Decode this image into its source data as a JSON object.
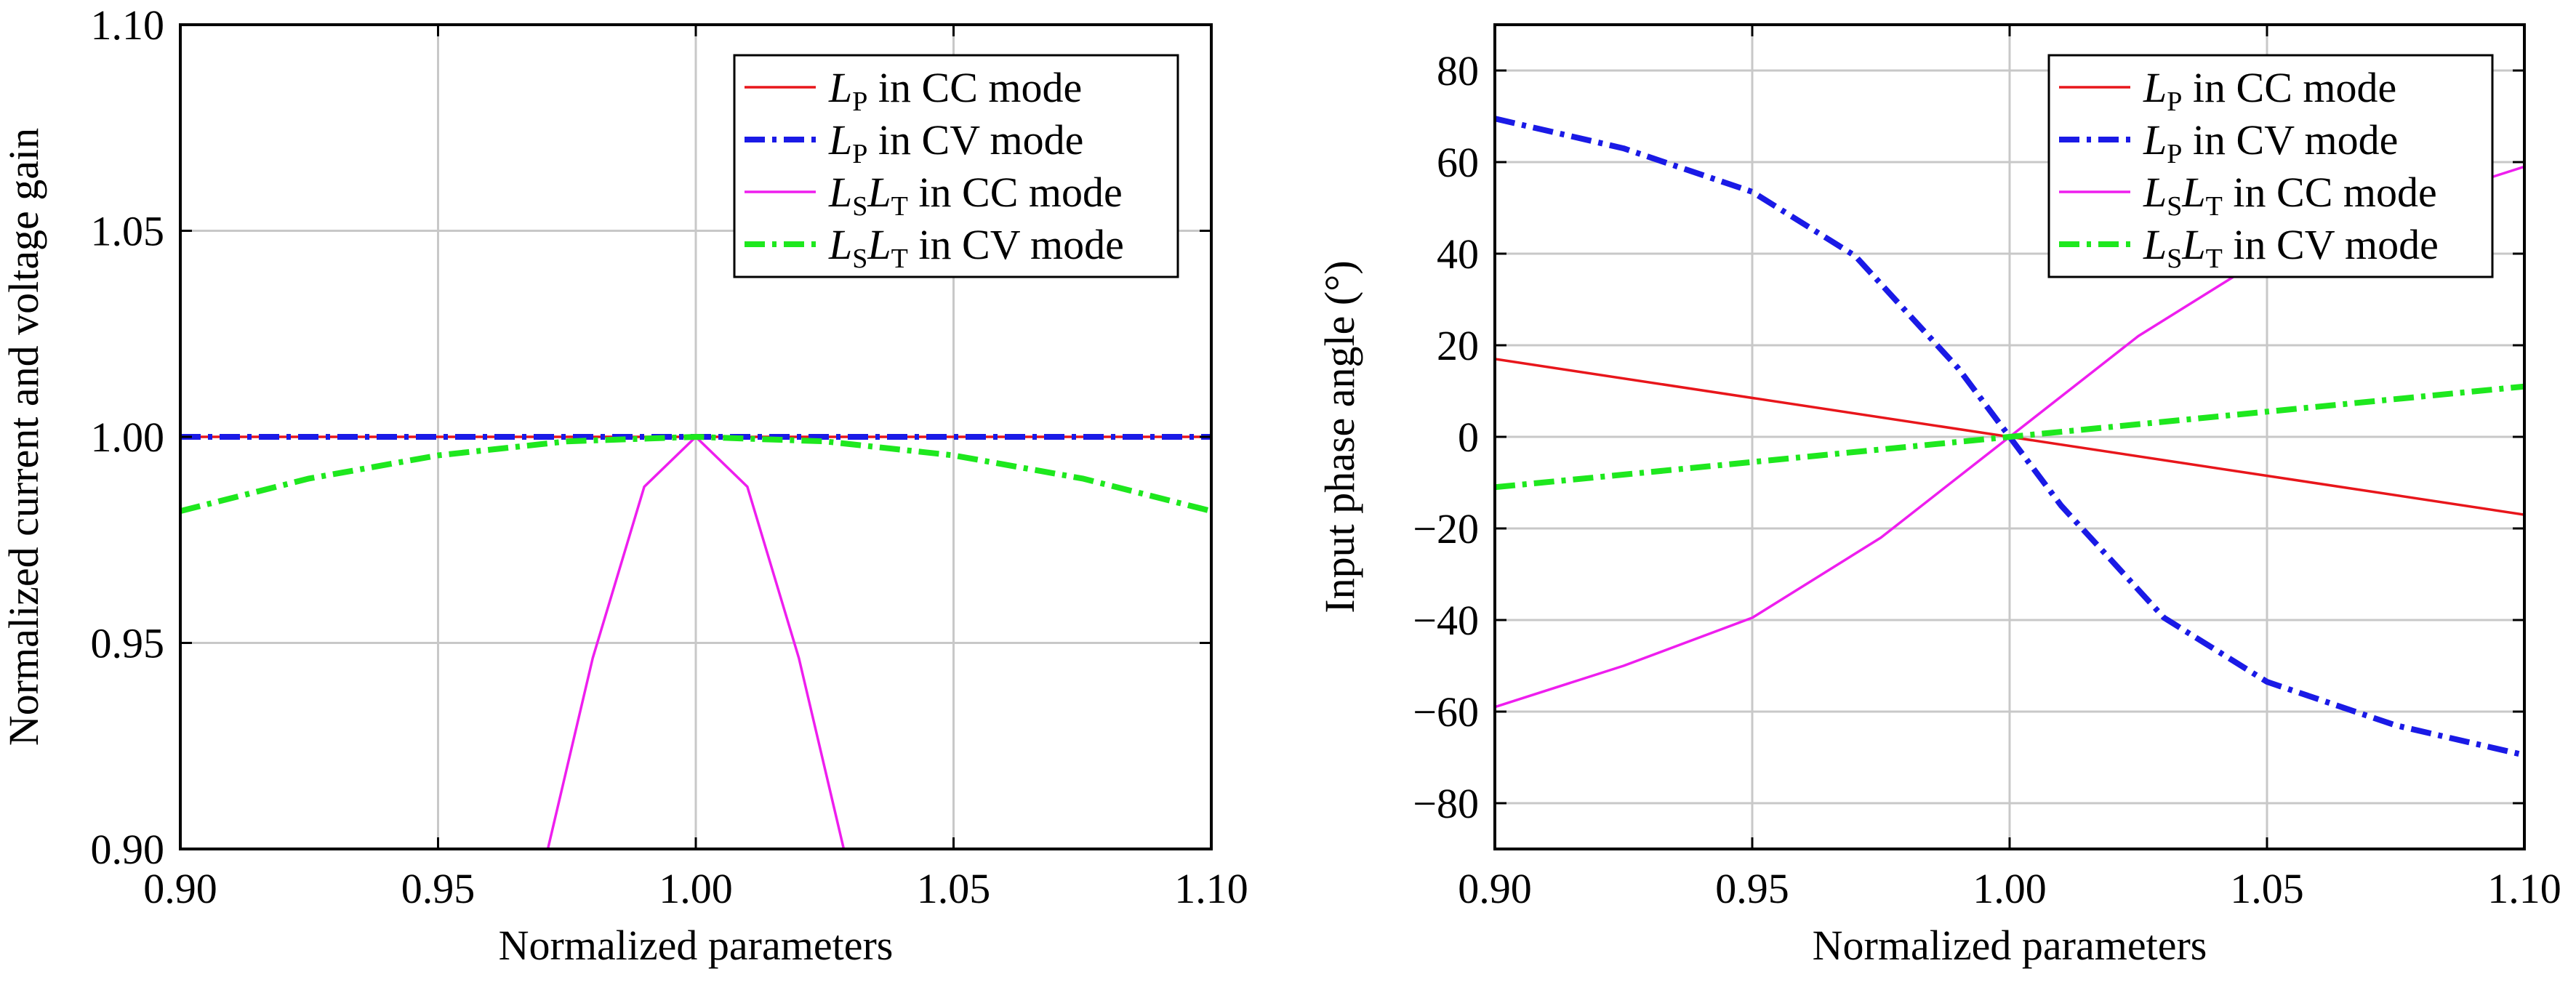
{
  "charts": [
    {
      "xlabel": "Normalized parameters",
      "ylabel": "Normalized current and voltage gain"
    },
    {
      "xlabel": "Normalized parameters",
      "ylabel": "Input phase angle (°)"
    }
  ],
  "legend": [
    {
      "main": "L",
      "sub": "P",
      "main2": "",
      "sub2": "",
      "text": " in CC mode"
    },
    {
      "main": "L",
      "sub": "P",
      "main2": "",
      "sub2": "",
      "text": " in CV mode"
    },
    {
      "main": "L",
      "sub": "S",
      "main2": "L",
      "sub2": "T",
      "text": " in CC mode"
    },
    {
      "main": "L",
      "sub": "S",
      "main2": "L",
      "sub2": "T",
      "text": " in CV mode"
    }
  ],
  "chart_data": [
    {
      "type": "line",
      "xlabel": "Normalized parameters",
      "ylabel": "Normalized current and voltage gain",
      "xlim": [
        0.9,
        1.1
      ],
      "ylim": [
        0.9,
        1.1
      ],
      "xticks": [
        "0.90",
        "0.95",
        "1.00",
        "1.05",
        "1.10"
      ],
      "yticks": [
        "0.90",
        "0.95",
        "1.00",
        "1.05",
        "1.10"
      ],
      "grid": true,
      "legend_position": "top-right",
      "series": [
        {
          "name": "LP in CC mode",
          "color": "#e8161b",
          "style": "solid",
          "x": [
            0.9,
            0.95,
            1.0,
            1.05,
            1.1
          ],
          "y": [
            1.0,
            1.0,
            1.0,
            1.0,
            1.0
          ]
        },
        {
          "name": "LP in CV mode",
          "color": "#1a1ae6",
          "style": "dashdot",
          "x": [
            0.9,
            0.95,
            1.0,
            1.05,
            1.1
          ],
          "y": [
            1.0,
            1.0,
            1.0,
            1.0,
            1.0
          ]
        },
        {
          "name": "LSLT in CC mode",
          "color": "#ee1eee",
          "style": "solid",
          "x": [
            0.9713,
            0.98,
            0.99,
            1.0,
            1.01,
            1.02,
            1.0287
          ],
          "y": [
            0.9,
            0.9463,
            0.9879,
            1.0,
            0.9879,
            0.9463,
            0.9
          ]
        },
        {
          "name": "LSLT in CV mode",
          "color": "#1ee81e",
          "style": "dashdot",
          "x": [
            0.9,
            0.925,
            0.95,
            0.975,
            1.0,
            1.025,
            1.05,
            1.075,
            1.1
          ],
          "y": [
            0.982,
            0.9899,
            0.9955,
            0.9989,
            1.0,
            0.9989,
            0.9955,
            0.9899,
            0.982
          ]
        }
      ]
    },
    {
      "type": "line",
      "xlabel": "Normalized parameters",
      "ylabel": "Input phase angle (°)",
      "xlim": [
        0.9,
        1.1
      ],
      "ylim": [
        -90,
        90
      ],
      "xticks": [
        "0.90",
        "0.95",
        "1.00",
        "1.05",
        "1.10"
      ],
      "yticks": [
        "−80",
        "−60",
        "−40",
        "−20",
        "0",
        "20",
        "40",
        "60",
        "80"
      ],
      "grid": true,
      "legend_position": "top-right",
      "series": [
        {
          "name": "LP in CC mode",
          "color": "#e8161b",
          "style": "solid",
          "x": [
            0.9,
            1.0,
            1.1
          ],
          "y": [
            17,
            0,
            -17
          ]
        },
        {
          "name": "LP in CV mode",
          "color": "#1a1ae6",
          "style": "dashdot",
          "x": [
            0.9,
            0.925,
            0.95,
            0.97,
            0.99,
            1.0,
            1.01,
            1.03,
            1.05,
            1.075,
            1.1
          ],
          "y": [
            69.5,
            63,
            53.5,
            39.5,
            15,
            0,
            -15,
            -39.5,
            -53.5,
            -63,
            -69.5
          ]
        },
        {
          "name": "LSLT in CC mode",
          "color": "#ee1eee",
          "style": "solid",
          "x": [
            0.9,
            0.925,
            0.95,
            0.975,
            1.0,
            1.025,
            1.05,
            1.075,
            1.1
          ],
          "y": [
            -59,
            -50,
            -39.5,
            -22,
            0,
            22,
            39.5,
            50,
            59
          ]
        },
        {
          "name": "LSLT in CV mode",
          "color": "#1ee81e",
          "style": "dashdot",
          "x": [
            0.9,
            1.0,
            1.1
          ],
          "y": [
            -11,
            0,
            11
          ]
        }
      ]
    }
  ]
}
